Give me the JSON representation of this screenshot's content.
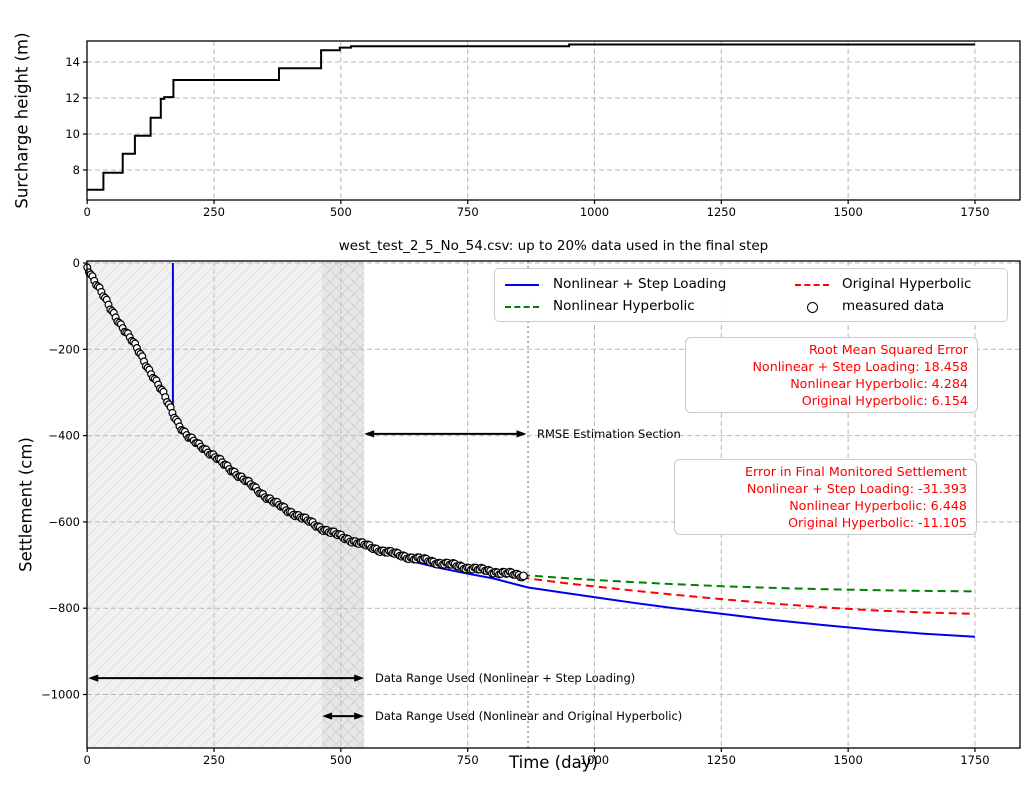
{
  "figure": {
    "background": "#ffffff"
  },
  "colors": {
    "nonlinear_step_loading": "#0000ee",
    "nonlinear_hyperbolic": "#008000",
    "original_hyperbolic": "#ff0000",
    "measured": "#000000",
    "grid": "#b9b9b9",
    "data_end_line": "#999999",
    "region_light_fill": "#f1f1f1",
    "region_light_hatch": "#e0e0e0",
    "region_dark_fill": "#e7e7e7",
    "region_dark_hatch": "#d2d2d2",
    "box_text": "#ff0000",
    "spine": "#000000"
  },
  "legend": {
    "items": [
      {
        "label": "Nonlinear + Step Loading",
        "style": "solid",
        "color": "#0000ee"
      },
      {
        "label": "Nonlinear Hyperbolic",
        "style": "dashed",
        "color": "#008000"
      },
      {
        "label": "Original Hyperbolic",
        "style": "dashed",
        "color": "#ff0000"
      },
      {
        "label": "measured data",
        "style": "circle",
        "color": "#000000"
      }
    ]
  },
  "rmse_box": {
    "title": "Root Mean Squared Error",
    "lines": [
      "Nonlinear + Step Loading: 18.458",
      "Nonlinear Hyperbolic: 4.284",
      "Original Hyperbolic: 6.154"
    ]
  },
  "final_error_box": {
    "title": "Error in Final Monitored Settlement",
    "lines": [
      "Nonlinear + Step Loading: -31.393",
      "Nonlinear Hyperbolic: 6.448",
      "Original Hyperbolic: -11.105"
    ]
  },
  "chart_data": [
    {
      "type": "line",
      "title": "",
      "xlabel": "",
      "ylabel": "Surcharge height (m)",
      "xlim": [
        0,
        1840
      ],
      "ylim": [
        6.3,
        15.2
      ],
      "xticks": [
        0,
        250,
        500,
        750,
        1000,
        1250,
        1500,
        1750
      ],
      "yticks": [
        8,
        10,
        12,
        14
      ],
      "grid": true,
      "series": [
        {
          "name": "surcharge height",
          "color": "#000000",
          "style": "step",
          "points": [
            [
              0,
              6.9
            ],
            [
              32,
              6.9
            ],
            [
              32,
              7.85
            ],
            [
              70,
              7.85
            ],
            [
              70,
              8.9
            ],
            [
              94,
              8.9
            ],
            [
              94,
              9.9
            ],
            [
              125,
              9.9
            ],
            [
              125,
              10.9
            ],
            [
              145,
              10.9
            ],
            [
              145,
              11.95
            ],
            [
              152,
              11.95
            ],
            [
              152,
              12.05
            ],
            [
              170,
              12.05
            ],
            [
              170,
              13.0
            ],
            [
              378,
              13.0
            ],
            [
              378,
              13.65
            ],
            [
              461,
              13.65
            ],
            [
              461,
              14.65
            ],
            [
              498,
              14.65
            ],
            [
              498,
              14.8
            ],
            [
              520,
              14.8
            ],
            [
              520,
              14.88
            ],
            [
              950,
              14.88
            ],
            [
              950,
              14.97
            ],
            [
              1750,
              14.97
            ]
          ]
        }
      ]
    },
    {
      "type": "scatter+line",
      "title": "west_test_2_5_No_54.csv: up to 20% data used in the final step",
      "xlabel": "Time (day)",
      "ylabel": "Settlement (cm)",
      "xlim": [
        0,
        1840
      ],
      "ylim": [
        -1125,
        0
      ],
      "xticks": [
        0,
        250,
        500,
        750,
        1000,
        1250,
        1500,
        1750
      ],
      "yticks": [
        0,
        -200,
        -400,
        -600,
        -800,
        -1000
      ],
      "grid": true,
      "regions": [
        {
          "name": "data range nonlinear + step loading",
          "x0": 0,
          "x1": 463,
          "hatch": "/"
        },
        {
          "name": "data range nonlinear and original hyperbolic",
          "x0": 463,
          "x1": 546,
          "hatch": "x"
        }
      ],
      "measured_data_end_day": 869,
      "series": [
        {
          "name": "Nonlinear + Step Loading",
          "color": "#0000ee",
          "dash": "solid",
          "points": [
            [
              169,
              0
            ],
            [
              169,
              -358
            ],
            [
              175,
              -368
            ],
            [
              185,
              -382
            ],
            [
              200,
              -403
            ],
            [
              225,
              -425
            ],
            [
              250,
              -448
            ],
            [
              275,
              -470
            ],
            [
              300,
              -492
            ],
            [
              325,
              -515
            ],
            [
              350,
              -538
            ],
            [
              375,
              -557
            ],
            [
              400,
              -574
            ],
            [
              425,
              -591
            ],
            [
              450,
              -606
            ],
            [
              475,
              -620
            ],
            [
              500,
              -633
            ],
            [
              525,
              -646
            ],
            [
              550,
              -658
            ],
            [
              575,
              -668
            ],
            [
              600,
              -678
            ],
            [
              650,
              -694
            ],
            [
              700,
              -708
            ],
            [
              750,
              -720
            ],
            [
              800,
              -731
            ],
            [
              869,
              -752
            ],
            [
              950,
              -766
            ],
            [
              1050,
              -783
            ],
            [
              1150,
              -799
            ],
            [
              1250,
              -813
            ],
            [
              1350,
              -827
            ],
            [
              1450,
              -839
            ],
            [
              1550,
              -850
            ],
            [
              1650,
              -859
            ],
            [
              1750,
              -866
            ]
          ]
        },
        {
          "name": "Nonlinear Hyperbolic",
          "color": "#008000",
          "dash": "dashed",
          "points": [
            [
              460,
              -613
            ],
            [
              500,
              -634
            ],
            [
              550,
              -656
            ],
            [
              600,
              -673
            ],
            [
              650,
              -687
            ],
            [
              700,
              -698
            ],
            [
              750,
              -707
            ],
            [
              800,
              -715
            ],
            [
              869,
              -724
            ],
            [
              950,
              -731
            ],
            [
              1050,
              -738
            ],
            [
              1150,
              -744
            ],
            [
              1250,
              -749
            ],
            [
              1350,
              -753
            ],
            [
              1450,
              -756
            ],
            [
              1550,
              -758
            ],
            [
              1650,
              -760
            ],
            [
              1750,
              -761
            ]
          ]
        },
        {
          "name": "Original Hyperbolic",
          "color": "#ff0000",
          "dash": "dashed",
          "points": [
            [
              460,
              -613
            ],
            [
              500,
              -635
            ],
            [
              550,
              -658
            ],
            [
              600,
              -676
            ],
            [
              650,
              -690
            ],
            [
              700,
              -701
            ],
            [
              750,
              -711
            ],
            [
              800,
              -719
            ],
            [
              869,
              -731
            ],
            [
              950,
              -743
            ],
            [
              1050,
              -756
            ],
            [
              1150,
              -768
            ],
            [
              1250,
              -779
            ],
            [
              1350,
              -789
            ],
            [
              1450,
              -798
            ],
            [
              1550,
              -805
            ],
            [
              1650,
              -810
            ],
            [
              1750,
              -813
            ]
          ]
        },
        {
          "name": "measured data",
          "color": "#000000",
          "marker": "circle",
          "sample_step_days": 3.5,
          "points": [
            [
              0,
              -8
            ],
            [
              15,
              -42
            ],
            [
              30,
              -73
            ],
            [
              45,
              -104
            ],
            [
              60,
              -131
            ],
            [
              75,
              -158
            ],
            [
              90,
              -184
            ],
            [
              105,
              -211
            ],
            [
              120,
              -243
            ],
            [
              135,
              -273
            ],
            [
              150,
              -303
            ],
            [
              160,
              -326
            ],
            [
              170,
              -350
            ],
            [
              180,
              -372
            ],
            [
              190,
              -391
            ],
            [
              200,
              -405
            ],
            [
              215,
              -417
            ],
            [
              230,
              -428
            ],
            [
              250,
              -448
            ],
            [
              270,
              -467
            ],
            [
              290,
              -484
            ],
            [
              310,
              -503
            ],
            [
              330,
              -521
            ],
            [
              350,
              -539
            ],
            [
              370,
              -556
            ],
            [
              390,
              -570
            ],
            [
              410,
              -582
            ],
            [
              430,
              -595
            ],
            [
              450,
              -607
            ],
            [
              470,
              -619
            ],
            [
              490,
              -629
            ],
            [
              515,
              -640
            ],
            [
              540,
              -651
            ],
            [
              565,
              -661
            ],
            [
              590,
              -669
            ],
            [
              615,
              -677
            ],
            [
              645,
              -684
            ],
            [
              675,
              -691
            ],
            [
              710,
              -698
            ],
            [
              745,
              -705
            ],
            [
              775,
              -711
            ],
            [
              805,
              -716
            ],
            [
              835,
              -721
            ],
            [
              860,
              -725
            ]
          ]
        }
      ],
      "annotations": [
        {
          "label": "RMSE Estimation Section",
          "day_start": 546,
          "day_end": 866,
          "y_cm": -396
        },
        {
          "label": "Data Range Used (Nonlinear + Step Loading)",
          "day_start": 2,
          "day_end": 546,
          "y_cm": -962
        },
        {
          "label": "Data Range Used (Nonlinear and Original Hyperbolic)",
          "day_start": 463,
          "day_end": 546,
          "y_cm": -1050
        }
      ]
    }
  ]
}
